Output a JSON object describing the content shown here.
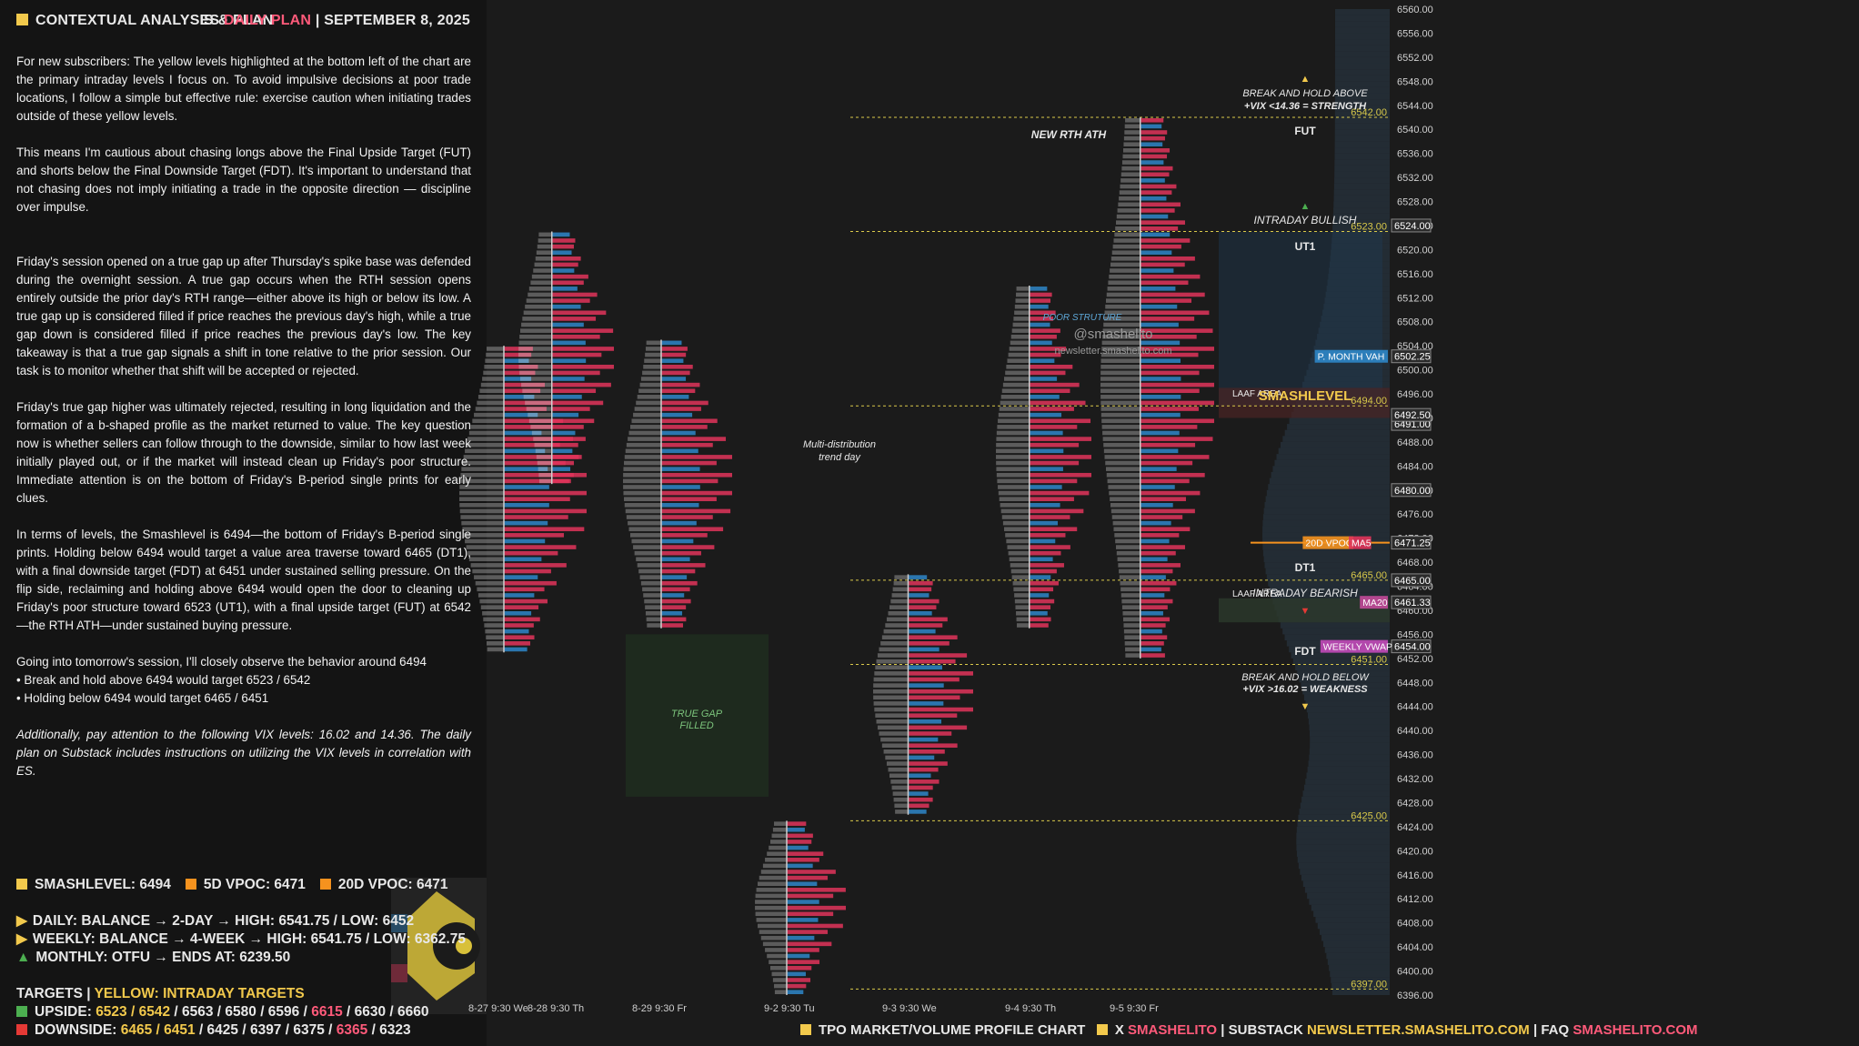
{
  "header": {
    "left_title": "CONTEXTUAL ANALYSIS & PLAN",
    "right_prefix": "ES",
    "right_highlight": "DAILY PLAN",
    "right_sep": "|",
    "right_date": "SEPTEMBER 8, 2025"
  },
  "body": {
    "p1": "For new subscribers: The yellow levels highlighted at the bottom left of the chart are the primary intraday levels I focus on. To avoid impulsive decisions at poor trade locations, I follow a simple but effective rule: exercise caution when initiating trades outside of these yellow levels.",
    "p2": "This means I'm cautious about chasing longs above the Final Upside Target (FUT) and shorts below the Final Downside Target (FDT). It's important to understand that not chasing does not imply initiating a trade in the opposite direction — discipline over impulse.",
    "p3": "Friday's session opened on a true gap up after Thursday's spike base was defended during the overnight session. A true gap occurs when the RTH session opens entirely outside the prior day's RTH range—either above its high or below its low. A true gap up is considered filled if price reaches the previous day's high, while a true gap down is considered filled if price reaches the previous day's low. The key takeaway is that a true gap signals a shift in tone relative to the prior session. Our task is to monitor whether that shift will be accepted or rejected.",
    "p4": "Friday's true gap higher was ultimately rejected, resulting in long liquidation and the formation of a b-shaped profile as the market returned to value. The key question now is whether sellers can follow through to the downside, similar to how last week initially played out, or if the market will instead clean up Friday's poor structure. Immediate attention is on the bottom of Friday's B-period single prints for early clues.",
    "p5": "In terms of levels, the Smashlevel is 6494—the bottom of Friday's B-period single prints. Holding below 6494 would target a value area traverse toward 6465 (DT1), with a final downside target (FDT) at 6451 under sustained selling pressure. On the flip side, reclaiming and holding above 6494 would open the door to cleaning up Friday's poor structure toward 6523 (UT1), with a final upside target (FUT) at 6542—the RTH ATH—under sustained buying pressure.",
    "p6a": "Going into tomorrow's session, I'll closely observe the behavior around 6494",
    "p6b": "• Break and hold above 6494 would target 6523 / 6542",
    "p6c": "• Holding below 6494 would target 6465 / 6451",
    "p7": "Additionally, pay attention to the following VIX levels: 16.02 and 14.36. The daily plan on Substack includes instructions on utilizing the VIX levels in correlation with ES."
  },
  "levels": {
    "smash": "SMASHLEVEL: 6494",
    "vpoc5": "5D VPOC: 6471",
    "vpoc20": "20D VPOC: 6471",
    "daily": "DAILY: BALANCE → 2-DAY → HIGH: 6541.75 / LOW: 6452",
    "weekly": "WEEKLY: BALANCE → 4-WEEK → HIGH: 6541.75 / LOW: 6362.75",
    "monthly": "MONTHLY: OTFU → ENDS AT: 6239.50",
    "targets_label": "TARGETS",
    "targets_sep": "|",
    "targets_yellow": "YELLOW: INTRADAY TARGETS",
    "upside_label": "UPSIDE:",
    "upside_yellow": "6523 / 6542",
    "upside_rest1": "/ 6563 / 6580 / 6596 /",
    "upside_red": "6615",
    "upside_rest2": "/ 6630 / 6660",
    "downside_label": "DOWNSIDE:",
    "downside_yellow": "6465 / 6451",
    "downside_rest1": "/ 6425 / 6397 / 6375 /",
    "downside_red": "6365",
    "downside_rest2": "/ 6323"
  },
  "footer": {
    "t1": "TPO MARKET/VOLUME PROFILE CHART",
    "t2": "X",
    "t3": "SMASHELITO",
    "t4": "| SUBSTACK",
    "t5": "NEWSLETTER.SMASHELITO.COM",
    "t6": "| FAQ",
    "t7": "SMASHELITO.COM"
  },
  "colors": {
    "yellow": "#f2c94c",
    "pink": "#ff5a7a",
    "blue": "#2e86c8",
    "red": "#e0345a",
    "orange": "#f5921e",
    "gray": "#7a7a7a"
  },
  "chart_data": {
    "type": "tpo_profile",
    "watermark": "@smashelito",
    "watermark2": "newsletter.smashelito.com",
    "ylim": [
      6396,
      6560
    ],
    "y_ticks": [
      6396,
      6400,
      6404,
      6408,
      6412,
      6416,
      6420,
      6424,
      6428,
      6432,
      6436,
      6440,
      6444,
      6448,
      6452,
      6456,
      6460,
      6464,
      6468,
      6472,
      6476,
      6480,
      6484,
      6488,
      6492,
      6496,
      6500,
      6504,
      6508,
      6512,
      6516,
      6520,
      6524,
      6528,
      6532,
      6536,
      6540,
      6544,
      6548,
      6552,
      6556,
      6560
    ],
    "sessions": [
      {
        "label": "8-27  9:30 We",
        "lo": 6453,
        "hi": 6504
      },
      {
        "label": "8-28  9:30 Th",
        "lo": 6481,
        "hi": 6523
      },
      {
        "label": "8-29  9:30 Fr",
        "lo": 6457,
        "hi": 6505
      },
      {
        "label": "9-2  9:30 Tu",
        "lo": 6396,
        "hi": 6425
      },
      {
        "label": "9-3  9:30 We",
        "lo": 6426,
        "hi": 6466
      },
      {
        "label": "9-4  9:30 Th",
        "lo": 6457,
        "hi": 6514
      },
      {
        "label": "9-5  9:30 Fr",
        "lo": 6452,
        "hi": 6542
      }
    ],
    "levels": [
      {
        "price": 6542,
        "label": "6542.00",
        "name": "FUT"
      },
      {
        "price": 6523,
        "label": "6523.00",
        "name": "UT1"
      },
      {
        "price": 6494,
        "label": "6494.00",
        "name": "SMASHLEVEL"
      },
      {
        "price": 6465,
        "label": "6465.00",
        "name": "DT1"
      },
      {
        "price": 6451,
        "label": "6451.00",
        "name": "FDT"
      },
      {
        "price": 6425,
        "label": "6425.00"
      },
      {
        "price": 6397,
        "label": "6397.00"
      }
    ],
    "right_tags": [
      {
        "price": 6524,
        "text": "6524.00"
      },
      {
        "price": 6502.25,
        "text": "6502.25"
      },
      {
        "price": 6491,
        "text": "6491.00"
      },
      {
        "price": 6492.5,
        "text": "6492.50"
      },
      {
        "price": 6480,
        "text": "6480.00"
      },
      {
        "price": 6471.25,
        "text": "6471.25"
      },
      {
        "price": 6465,
        "text": "6465.00"
      },
      {
        "price": 6461.33,
        "text": "6461.33"
      },
      {
        "price": 6454,
        "text": "6454.00"
      }
    ],
    "indicator_labels": [
      {
        "price": 6502.25,
        "text": "P. MONTH VAH"
      },
      {
        "price": 6471.25,
        "text": "20D VPOC"
      },
      {
        "price": 6471.25,
        "text": "MA5"
      },
      {
        "price": 6461.33,
        "text": "MA20"
      },
      {
        "price": 6454,
        "text": "WEEKLY VWAP"
      }
    ],
    "annotations": {
      "break_above": "BREAK AND HOLD ABOVE",
      "break_above_vix": "+VIX <14.36 = STRENGTH",
      "fut": "FUT",
      "intraday_bullish": "INTRADAY BULLISH",
      "ut1": "UT1",
      "laaf": "LAAF AREA",
      "smashlevel": "SMASHLEVEL",
      "dt1": "DT1",
      "laaf2": "LAAF AREA",
      "intraday_bearish": "INTRADAY BEARISH",
      "fdt": "FDT",
      "break_below": "BREAK AND HOLD BELOW",
      "break_below_vix": "+VIX >16.02 = WEAKNESS",
      "new_ath": "NEW RTH ATH",
      "poor_structure": "POOR STRUTURE",
      "multi_dist": "Multi-distribution",
      "multi_dist2": "trend day",
      "gap1": "TRUE GAP",
      "gap2": "FILLED"
    }
  }
}
